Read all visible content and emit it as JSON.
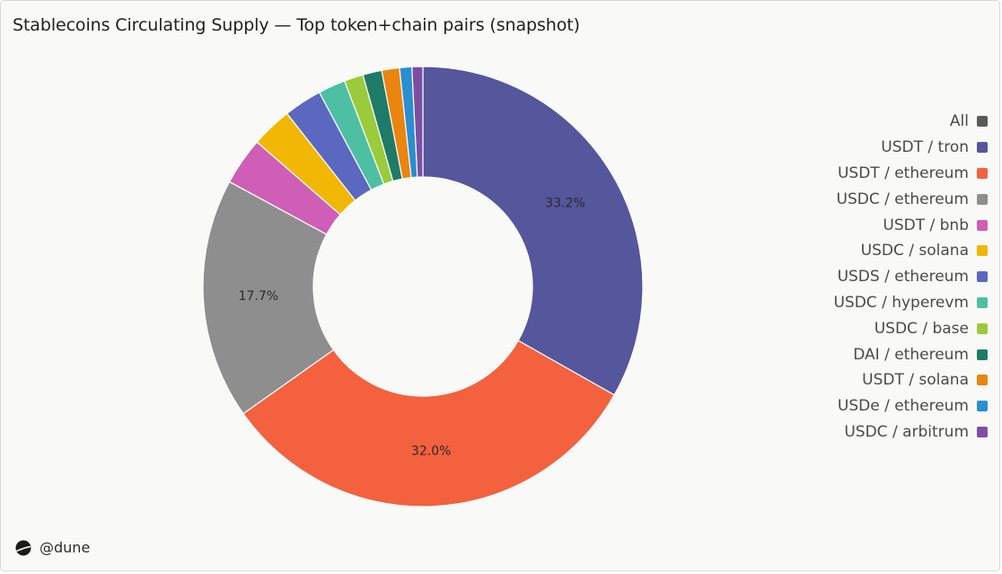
{
  "title": "Stablecoins Circulating Supply — Top token+chain pairs (snapshot)",
  "brand": {
    "logo_icon": "dune-logo-icon",
    "text": "@dune"
  },
  "legend": {
    "all_label": "All",
    "all_color": "#5a5a5a",
    "items": [
      {
        "label": "USDT / tron",
        "color": "#55569c"
      },
      {
        "label": "USDT / ethereum",
        "color": "#f4613e"
      },
      {
        "label": "USDC / ethereum",
        "color": "#8e8e8e"
      },
      {
        "label": "USDT / bnb",
        "color": "#cf5eb6"
      },
      {
        "label": "USDC / solana",
        "color": "#f2b705"
      },
      {
        "label": "USDS / ethereum",
        "color": "#5a68c0"
      },
      {
        "label": "USDC / hyperevm",
        "color": "#4dbfa3"
      },
      {
        "label": "USDC / base",
        "color": "#9acb3b"
      },
      {
        "label": "DAI / ethereum",
        "color": "#1e7b68"
      },
      {
        "label": "USDT / solana",
        "color": "#ea850f"
      },
      {
        "label": "USDe / ethereum",
        "color": "#2a8ecf"
      },
      {
        "label": "USDC / arbitrum",
        "color": "#7c4fa3"
      }
    ]
  },
  "chart_data": {
    "type": "pie",
    "donut": true,
    "legend_position": "right",
    "categories": [
      "USDT / tron",
      "USDT / ethereum",
      "USDC / ethereum",
      "USDT / bnb",
      "USDC / solana",
      "USDS / ethereum",
      "USDC / hyperevm",
      "USDC / base",
      "DAI / ethereum",
      "USDT / solana",
      "USDe / ethereum",
      "USDC / arbitrum"
    ],
    "values": [
      33.2,
      32.0,
      17.7,
      3.5,
      3.0,
      2.8,
      2.0,
      1.4,
      1.4,
      1.3,
      0.9,
      0.8
    ],
    "data_labels": [
      "33.2%",
      "32.0%",
      "17.7%",
      "",
      "",
      "",
      "",
      "",
      "",
      "",
      "",
      ""
    ]
  }
}
